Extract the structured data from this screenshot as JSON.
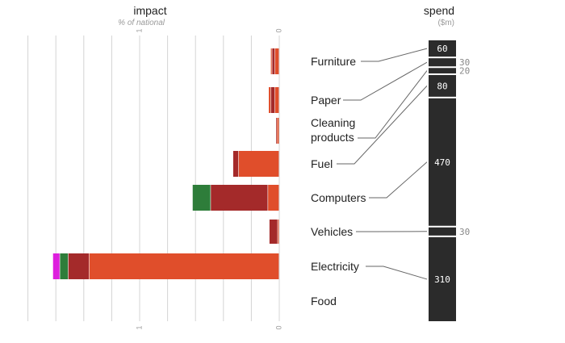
{
  "impact_header": {
    "title": "impact",
    "subtitle": "% of national"
  },
  "spend_header": {
    "title": "spend",
    "unit": "($m)"
  },
  "chart_data": {
    "type": "bar",
    "categories": [
      "Furniture",
      "Paper",
      "Cleaning products",
      "Fuel",
      "Computers",
      "Vehicles",
      "Electricity",
      "Food"
    ],
    "impact_axis": {
      "ticks": [
        0,
        1
      ],
      "tick_labels": [
        "0",
        "1"
      ],
      "orientation": "right-to-left",
      "xlim": [
        0,
        1.8
      ],
      "grid": true
    },
    "impact_colors": [
      "#e04e2b",
      "#a42a2a",
      "#2e7d3a",
      "#dd1fdd"
    ],
    "impact_segments": [
      {
        "category": "Furniture",
        "segments": [
          {
            "value": 0.03,
            "color": "#e04e2b"
          },
          {
            "value": 0.02,
            "color": "#a42a2a"
          },
          {
            "value": 0.01,
            "color": "#e04e2b"
          }
        ]
      },
      {
        "category": "Paper",
        "segments": [
          {
            "value": 0.03,
            "color": "#e04e2b"
          },
          {
            "value": 0.03,
            "color": "#a42a2a"
          },
          {
            "value": 0.015,
            "color": "#e04e2b"
          }
        ]
      },
      {
        "category": "Cleaning products",
        "segments": [
          {
            "value": 0.015,
            "color": "#e04e2b"
          },
          {
            "value": 0.008,
            "color": "#a42a2a"
          }
        ]
      },
      {
        "category": "Fuel",
        "segments": [
          {
            "value": 0.29,
            "color": "#e04e2b"
          },
          {
            "value": 0.04,
            "color": "#a42a2a"
          }
        ]
      },
      {
        "category": "Computers",
        "segments": [
          {
            "value": 0.08,
            "color": "#e04e2b"
          },
          {
            "value": 0.41,
            "color": "#a42a2a"
          },
          {
            "value": 0.13,
            "color": "#2e7d3a"
          }
        ]
      },
      {
        "category": "Vehicles",
        "segments": [
          {
            "value": 0.01,
            "color": "#e04e2b"
          },
          {
            "value": 0.06,
            "color": "#a42a2a"
          }
        ]
      },
      {
        "category": "Electricity",
        "segments": [
          {
            "value": 1.36,
            "color": "#e04e2b"
          },
          {
            "value": 0.15,
            "color": "#a42a2a"
          },
          {
            "value": 0.06,
            "color": "#2e7d3a"
          },
          {
            "value": 0.05,
            "color": "#dd1fdd"
          }
        ]
      },
      {
        "category": "Food",
        "segments": []
      }
    ],
    "spend": {
      "unit": "$m",
      "order": [
        "Furniture",
        "Paper",
        "Cleaning products",
        "Fuel",
        "Computers",
        "Vehicles",
        "Electricity"
      ],
      "values": [
        60,
        30,
        20,
        80,
        470,
        30,
        310
      ],
      "value_labels": [
        "60",
        "30",
        "20",
        "80",
        "470",
        "30",
        "310"
      ],
      "bar_color": "#2b2b2b"
    }
  }
}
